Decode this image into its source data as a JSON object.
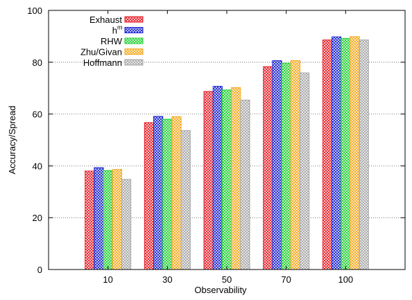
{
  "chart_data": {
    "type": "bar",
    "title": "",
    "xlabel": "Observability",
    "ylabel": "Accuracy/Spread",
    "ylim": [
      0,
      100
    ],
    "yticks": [
      0,
      20,
      40,
      60,
      80,
      100
    ],
    "grid": "horizontal dotted at y ticks",
    "legend_position": "top-left",
    "categories": [
      "10",
      "30",
      "50",
      "70",
      "100"
    ],
    "series": [
      {
        "name": "Exhaust",
        "color": "#e8202a",
        "values": [
          38,
          56.7,
          68.7,
          78.3,
          88.6
        ]
      },
      {
        "name": "h",
        "superscript": "m",
        "color": "#1e28d2",
        "values": [
          39.3,
          59.1,
          70.7,
          80.6,
          89.8
        ]
      },
      {
        "name": "RHW",
        "color": "#22d033",
        "values": [
          38.2,
          58,
          69.3,
          79.6,
          89.2
        ]
      },
      {
        "name": "Zhu/Givan",
        "color": "#f5aa1e",
        "values": [
          38.6,
          59,
          70.2,
          80.6,
          89.9
        ]
      },
      {
        "name": "Hoffmann",
        "color": "#a8a8a8",
        "values": [
          34.8,
          53.6,
          65.4,
          75.9,
          88.6
        ]
      }
    ]
  }
}
